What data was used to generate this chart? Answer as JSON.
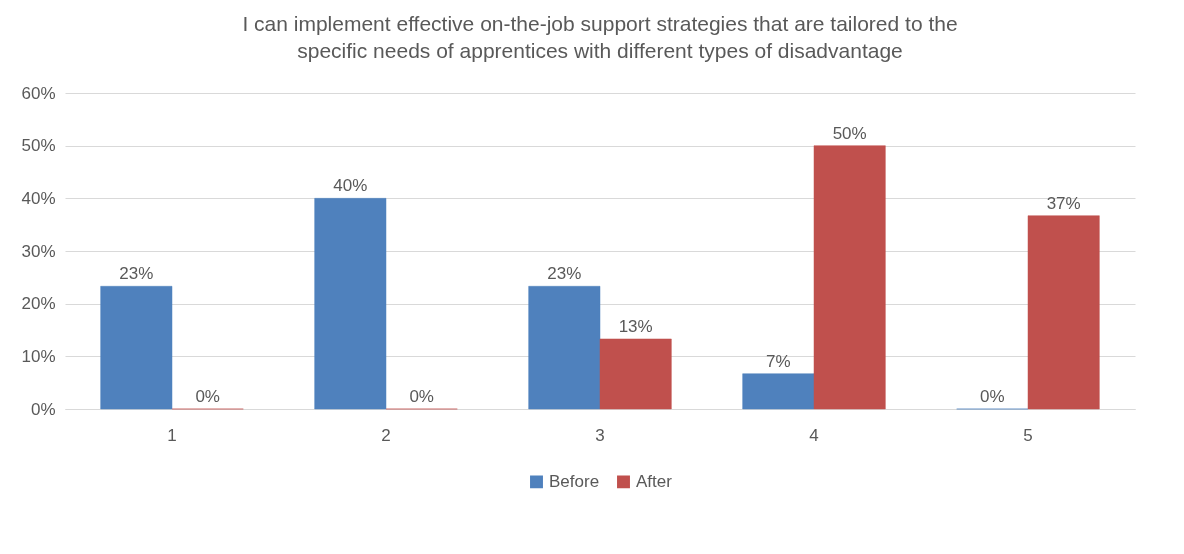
{
  "chart_data": {
    "type": "bar",
    "title": "I can implement effective on-the-job support strategies that are tailored to the specific needs of apprentices with different types of disadvantage",
    "categories": [
      "1",
      "2",
      "3",
      "4",
      "5"
    ],
    "series": [
      {
        "name": "Before",
        "color": "#4f81bd",
        "values": [
          23.3,
          40,
          23.3,
          6.7,
          0
        ],
        "value_labels": [
          "23%",
          "40%",
          "23%",
          "7%",
          "0%"
        ]
      },
      {
        "name": "After",
        "color": "#c0504d",
        "values": [
          0,
          0,
          13.3,
          50,
          36.7
        ],
        "value_labels": [
          "0%",
          "0%",
          "13%",
          "50%",
          "37%"
        ]
      }
    ],
    "ylim": [
      0,
      60
    ],
    "yticks": [
      {
        "value": 0,
        "label": "0%"
      },
      {
        "value": 10,
        "label": "10%"
      },
      {
        "value": 20,
        "label": "20%"
      },
      {
        "value": 30,
        "label": "30%"
      },
      {
        "value": 40,
        "label": "40%"
      },
      {
        "value": 50,
        "label": "50%"
      },
      {
        "value": 60,
        "label": "60%"
      }
    ],
    "grid": "y",
    "legend": "bottom"
  }
}
